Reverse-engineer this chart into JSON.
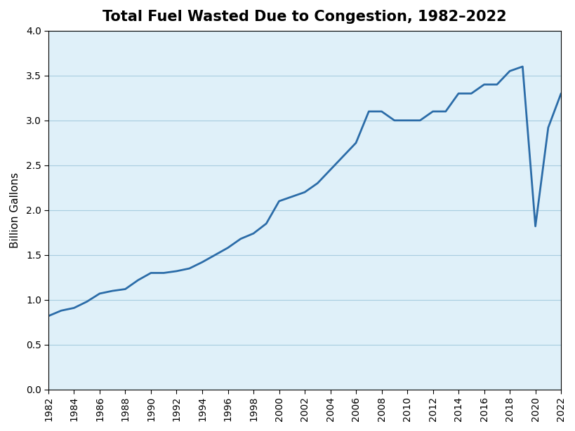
{
  "title": "Total Fuel Wasted Due to Congestion, 1982–2022",
  "ylabel": "Billion Gallons",
  "years": [
    1982,
    1983,
    1984,
    1985,
    1986,
    1987,
    1988,
    1989,
    1990,
    1991,
    1992,
    1993,
    1994,
    1995,
    1996,
    1997,
    1998,
    1999,
    2000,
    2001,
    2002,
    2003,
    2004,
    2005,
    2006,
    2007,
    2008,
    2009,
    2010,
    2011,
    2012,
    2013,
    2014,
    2015,
    2016,
    2017,
    2018,
    2019,
    2020,
    2021,
    2022
  ],
  "values": [
    0.82,
    0.88,
    0.91,
    0.98,
    1.07,
    1.1,
    1.12,
    1.22,
    1.3,
    1.3,
    1.32,
    1.35,
    1.42,
    1.5,
    1.58,
    1.68,
    1.74,
    1.85,
    2.1,
    2.15,
    2.2,
    2.3,
    2.45,
    2.6,
    2.75,
    3.1,
    3.1,
    3.0,
    3.0,
    3.0,
    3.1,
    3.1,
    3.3,
    3.3,
    3.4,
    3.4,
    3.55,
    3.6,
    1.82,
    2.92,
    3.3
  ],
  "line_color": "#2b6ca8",
  "line_width": 2.0,
  "plot_bg_color": "#dff0f9",
  "fig_bg_color": "#ffffff",
  "xlim": [
    1982,
    2022
  ],
  "ylim": [
    0.0,
    4.0
  ],
  "xtick_step": 2,
  "ytick_step": 0.5,
  "grid_color": "#a8cce0",
  "grid_alpha": 1.0,
  "title_fontsize": 15,
  "label_fontsize": 11,
  "tick_fontsize": 10
}
